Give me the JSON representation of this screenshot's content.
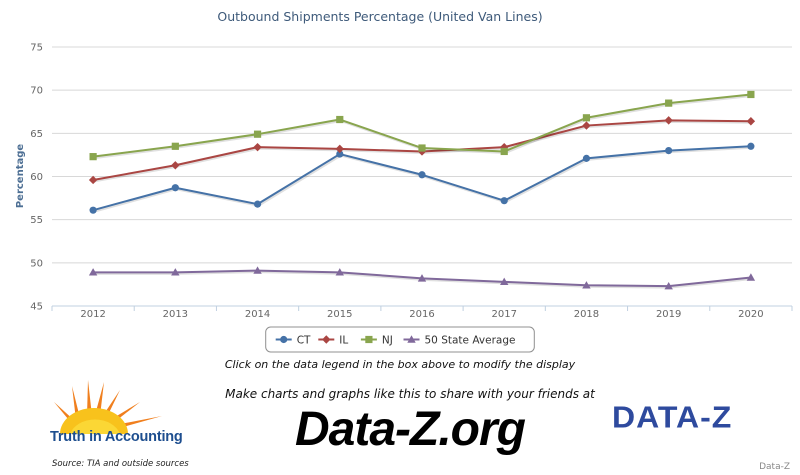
{
  "chart_data": {
    "type": "line",
    "title": "Outbound Shipments Percentage (United Van Lines)",
    "ylabel": "Percentage",
    "xlabel": "",
    "x": [
      "2012",
      "2013",
      "2014",
      "2015",
      "2016",
      "2017",
      "2018",
      "2019",
      "2020"
    ],
    "ylim": [
      45,
      75
    ],
    "yticks": [
      45,
      50,
      55,
      60,
      65,
      70,
      75
    ],
    "grid": true,
    "legend_position": "bottom",
    "series": [
      {
        "name": "CT",
        "color": "#4572a7",
        "marker": "circle",
        "values": [
          56.1,
          58.7,
          56.8,
          62.6,
          60.2,
          57.2,
          62.1,
          63.0,
          63.5
        ]
      },
      {
        "name": "IL",
        "color": "#aa4643",
        "marker": "diamond",
        "values": [
          59.6,
          61.3,
          63.4,
          63.2,
          62.9,
          63.4,
          65.9,
          66.5,
          66.4
        ]
      },
      {
        "name": "NJ",
        "color": "#89a54e",
        "marker": "square",
        "values": [
          62.3,
          63.5,
          64.9,
          66.6,
          63.3,
          62.9,
          66.8,
          68.5,
          69.5
        ]
      },
      {
        "name": "50 State Average",
        "color": "#80699b",
        "marker": "triangle",
        "values": [
          48.9,
          48.9,
          49.1,
          48.9,
          48.2,
          47.8,
          47.4,
          47.3,
          48.3
        ]
      }
    ]
  },
  "footer": {
    "instruction": "Click on the data legend in the box above to modify the display",
    "promo": "Make charts and graphs like this to share with your friends at",
    "site": "Data-Z.org",
    "tia_logo_text": "Truth in Accounting",
    "source": "Source: TIA and outside sources",
    "dataz_logo_text": "DATA-Z",
    "credit": "Data-Z"
  }
}
